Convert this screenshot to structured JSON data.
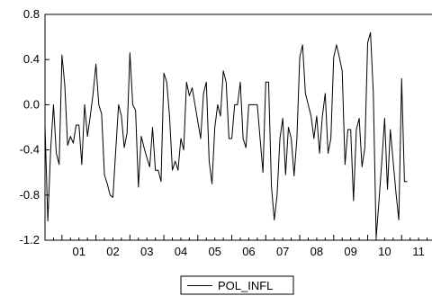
{
  "chart_data": {
    "type": "line",
    "title": "",
    "xlabel": "",
    "ylabel": "",
    "ylim": [
      -1.2,
      0.8
    ],
    "yticks": [
      {
        "value": 0.8,
        "label": "0.8"
      },
      {
        "value": 0.4,
        "label": "0.4"
      },
      {
        "value": 0.0,
        "label": "0.0"
      },
      {
        "value": -0.4,
        "label": "-0.4"
      },
      {
        "value": -0.8,
        "label": "-0.8"
      },
      {
        "value": -1.2,
        "label": "-1.2"
      }
    ],
    "xticks": [
      "01",
      "02",
      "03",
      "04",
      "05",
      "06",
      "07",
      "08",
      "09",
      "10",
      "11"
    ],
    "x_start": 2000.5,
    "x_end": 2012.0,
    "legend": {
      "position": "bottom-center"
    },
    "grid": false,
    "series": [
      {
        "name": "POL_INFL",
        "color": "#000000",
        "x_start": 2000.5,
        "step": 0.0833333,
        "values": [
          -0.18,
          -1.03,
          -0.4,
          0.0,
          -0.43,
          -0.53,
          0.44,
          0.17,
          -0.36,
          -0.28,
          -0.34,
          -0.18,
          -0.18,
          -0.53,
          0.0,
          -0.28,
          -0.1,
          0.1,
          0.36,
          0.0,
          -0.08,
          -0.62,
          -0.7,
          -0.8,
          -0.82,
          -0.4,
          0.0,
          -0.1,
          -0.38,
          -0.25,
          0.46,
          0.0,
          -0.05,
          -0.73,
          -0.28,
          -0.38,
          -0.47,
          -0.55,
          -0.2,
          -0.58,
          -0.58,
          -0.68,
          0.28,
          0.2,
          -0.1,
          -0.58,
          -0.5,
          -0.58,
          -0.3,
          -0.4,
          0.2,
          0.08,
          0.15,
          0.0,
          -0.15,
          -0.3,
          0.1,
          0.2,
          -0.5,
          -0.7,
          -0.2,
          0.0,
          -0.1,
          0.3,
          0.2,
          -0.3,
          -0.3,
          0.0,
          0.0,
          0.2,
          -0.3,
          -0.38,
          0.0,
          0.0,
          0.0,
          0.0,
          -0.3,
          -0.6,
          0.2,
          0.2,
          -0.72,
          -1.02,
          -0.8,
          -0.3,
          -0.12,
          -0.62,
          -0.2,
          -0.3,
          -0.63,
          -0.3,
          0.42,
          0.53,
          0.1,
          0.0,
          -0.1,
          -0.3,
          -0.1,
          -0.43,
          -0.1,
          0.1,
          -0.43,
          -0.3,
          0.42,
          0.53,
          0.42,
          0.3,
          -0.53,
          -0.22,
          -0.22,
          -0.85,
          -0.22,
          -0.12,
          -0.55,
          -0.38,
          0.55,
          0.64,
          0.1,
          -1.18,
          -0.85,
          -0.5,
          -0.12,
          -0.75,
          -0.22,
          -0.5,
          -0.78,
          -1.02,
          0.23,
          -0.68,
          -0.68
        ]
      }
    ]
  }
}
